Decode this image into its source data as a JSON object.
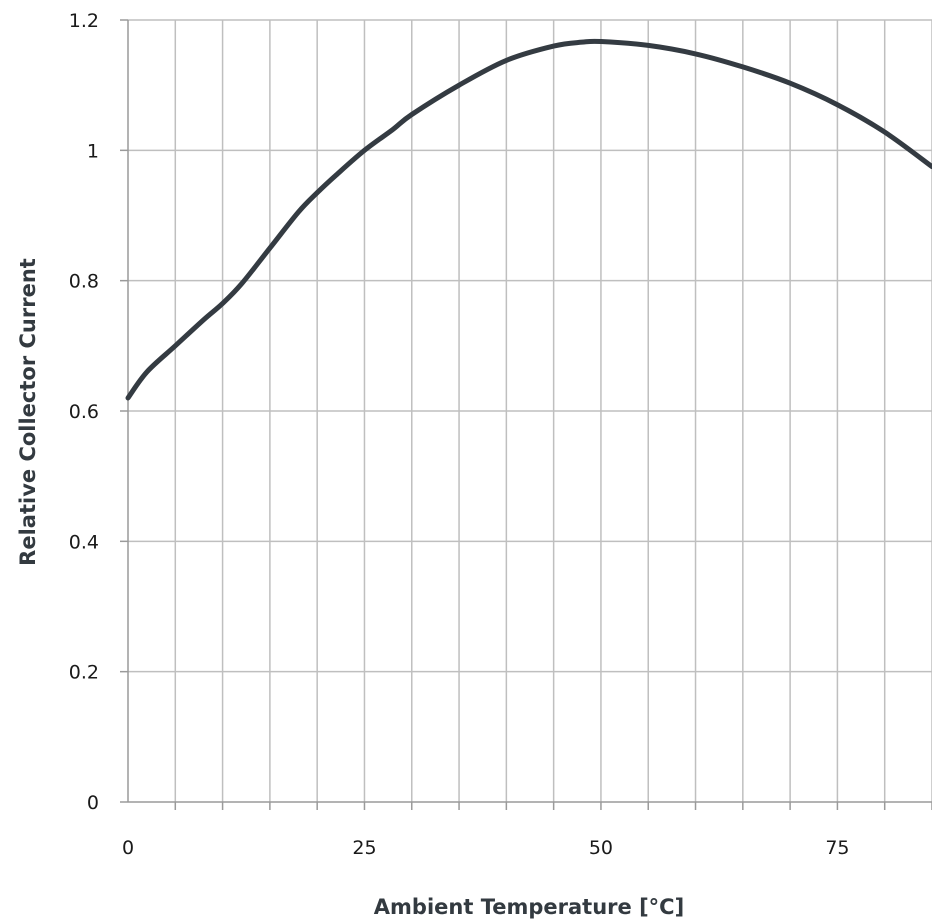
{
  "chart_data": {
    "type": "line",
    "xlabel": "Ambient Temperature [°C]",
    "ylabel": "Relative Collector Current",
    "xlim": [
      0,
      85
    ],
    "ylim": [
      0,
      1.2
    ],
    "x_ticks": [
      0,
      25,
      50,
      75
    ],
    "x_ticks_labels": [
      "0",
      "25",
      "50",
      "75"
    ],
    "x_minor_step": 5,
    "y_ticks": [
      0,
      0.2,
      0.4,
      0.6,
      0.8,
      1.0,
      1.2
    ],
    "y_ticks_labels": [
      "0",
      "0.2",
      "0.4",
      "0.6",
      "0.8",
      "1",
      "1.2"
    ],
    "grid": true,
    "line_color": "#343b42",
    "series": [
      {
        "x": [
          0,
          2,
          5,
          8,
          10,
          12,
          15,
          18,
          20,
          22,
          25,
          28,
          30,
          35,
          40,
          45,
          48,
          50,
          55,
          60,
          65,
          70,
          75,
          80,
          85
        ],
        "y": [
          0.62,
          0.66,
          0.7,
          0.74,
          0.765,
          0.795,
          0.85,
          0.905,
          0.935,
          0.962,
          1.0,
          1.032,
          1.055,
          1.1,
          1.138,
          1.16,
          1.166,
          1.167,
          1.161,
          1.148,
          1.128,
          1.103,
          1.07,
          1.028,
          0.975
        ]
      }
    ]
  }
}
